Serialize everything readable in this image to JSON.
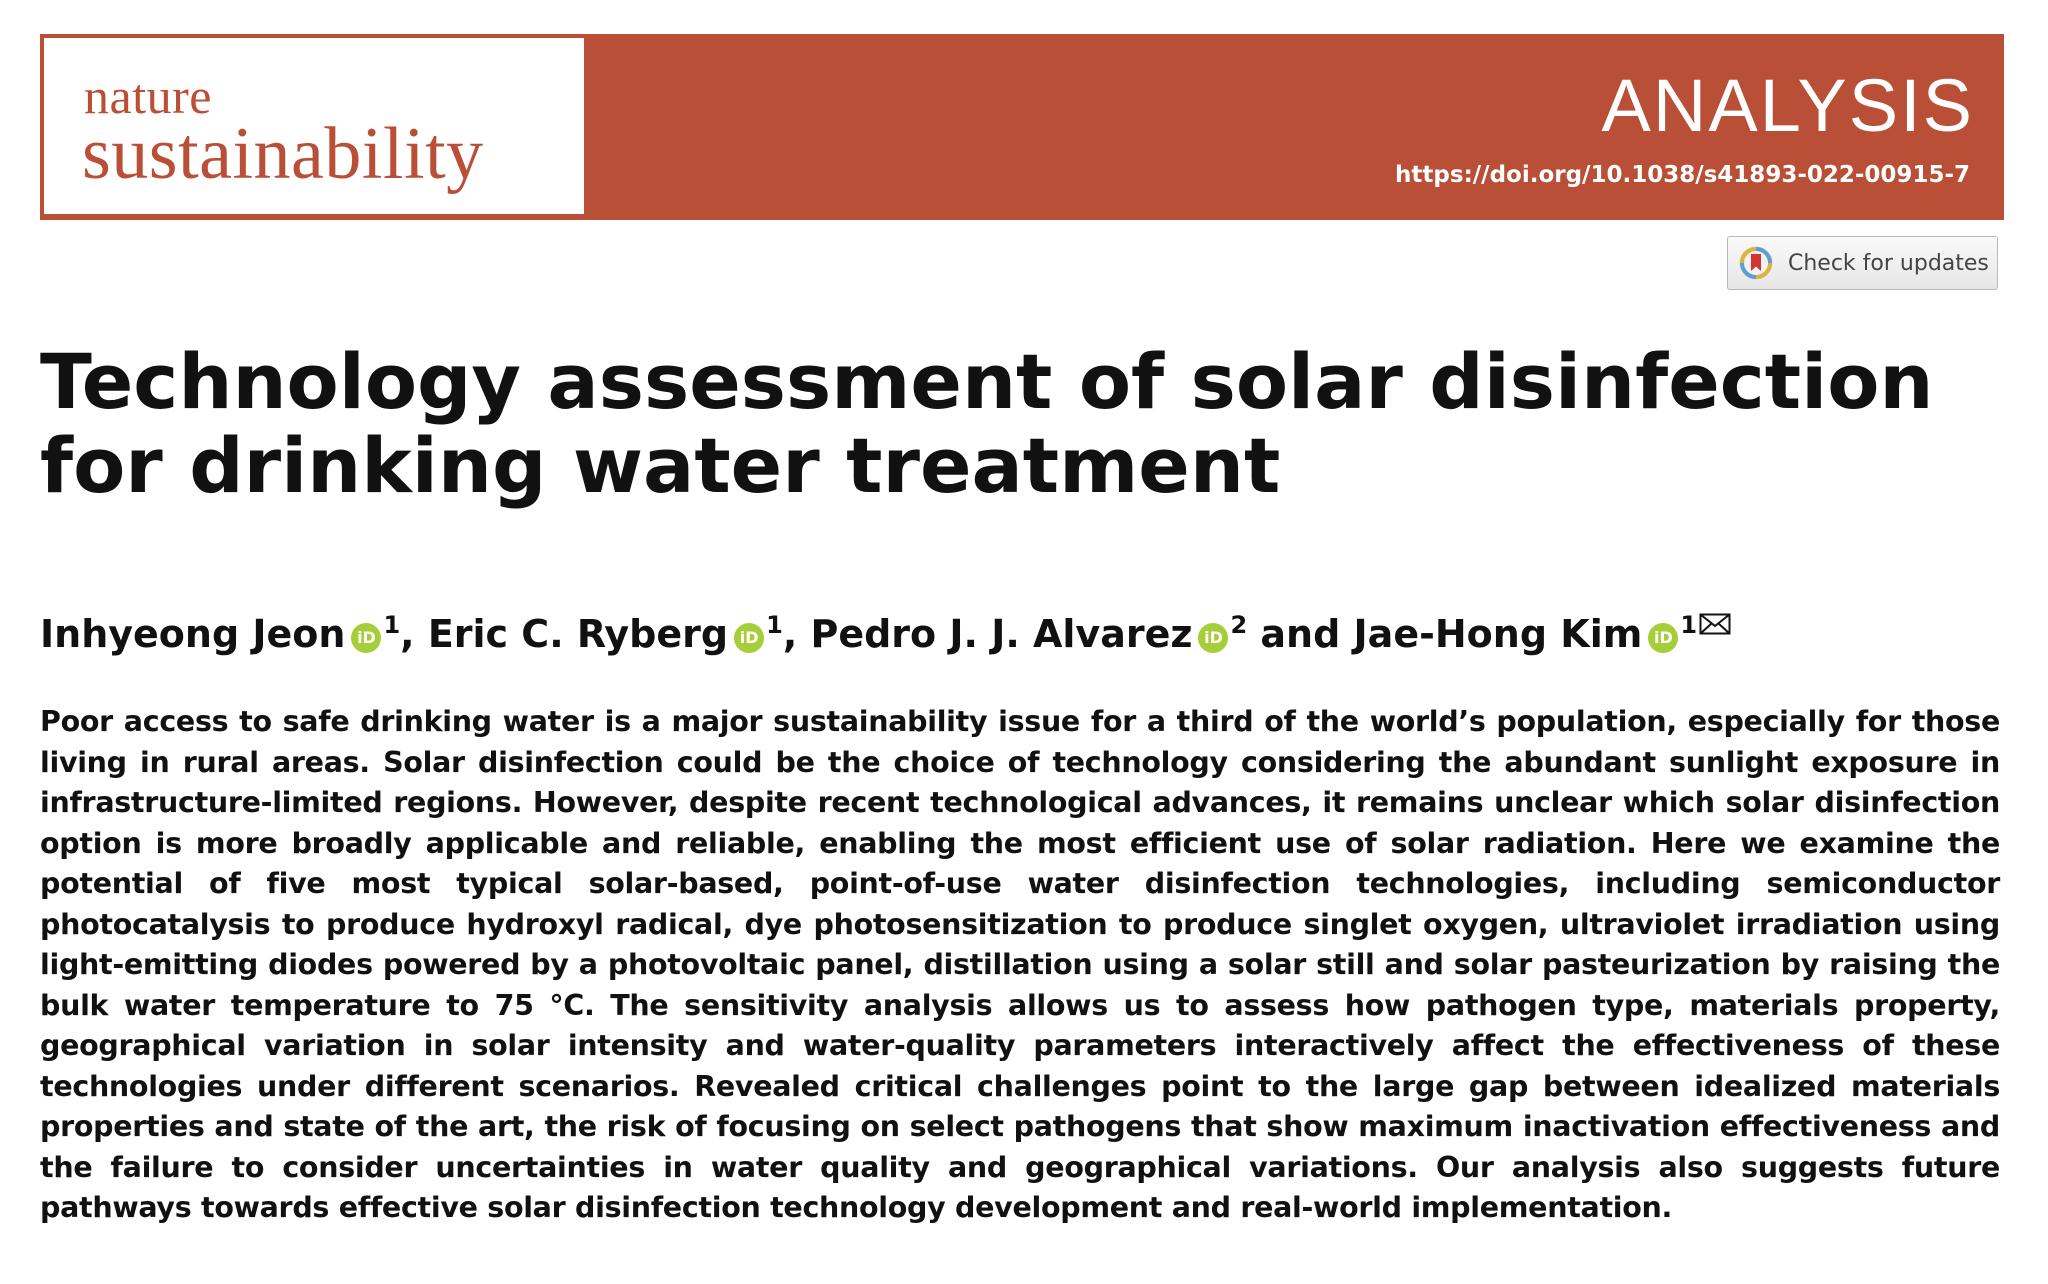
{
  "header": {
    "journal_name_line1": "nature",
    "journal_name_line2": "sustainability",
    "article_type": "ANALYSIS",
    "doi": "https://doi.org/10.1038/s41893-022-00915-7",
    "brand_color": "#b94f37"
  },
  "updates_button": {
    "label": "Check for updates",
    "icon": "check-for-updates-icon"
  },
  "title": "Technology assessment of solar disinfection for drinking water treatment",
  "authors": [
    {
      "name": "Inhyeong Jeon",
      "affiliation": "1",
      "separator": ", "
    },
    {
      "name": "Eric C. Ryberg",
      "affiliation": "1",
      "separator": ", "
    },
    {
      "name": "Pedro J. J. Alvarez",
      "affiliation": "2",
      "separator": " and "
    },
    {
      "name": "Jae-Hong Kim",
      "affiliation": "1",
      "separator": ""
    }
  ],
  "orcid_icon_text": "iD",
  "orcid_color": "#a6ce39",
  "abstract": "Poor access to safe drinking water is a major sustainability issue for a third of the world’s population, especially for those living in rural areas. Solar disinfection could be the choice of technology considering the abundant sunlight exposure in infrastructure-limited regions. However, despite recent technological advances, it remains unclear which solar disinfection option is more broadly applicable and reliable, enabling the most efficient use of solar radiation. Here we examine the potential of five most typical solar-based, point-of-use water disinfection technologies, including semiconductor photocatalysis to produce hydroxyl radical, dye photosensitization to produce singlet oxygen, ultraviolet irradiation using light-emitting diodes powered by a photovoltaic panel, distillation using a solar still and solar pasteurization by raising the bulk water temperature to 75 °C. The sensitivity analysis allows us to assess how pathogen type, materials property, geographical variation in solar intensity and water-quality parameters interactively affect the effectiveness of these technologies under different scenarios. Revealed critical challenges point to the large gap between idealized materials properties and state of the art, the risk of focusing on select pathogens that show maximum inactivation effectiveness and the failure to consider uncertainties in water quality and geographical variations. Our analysis also suggests future pathways towards effective solar disinfection technology development and real-world implementation."
}
